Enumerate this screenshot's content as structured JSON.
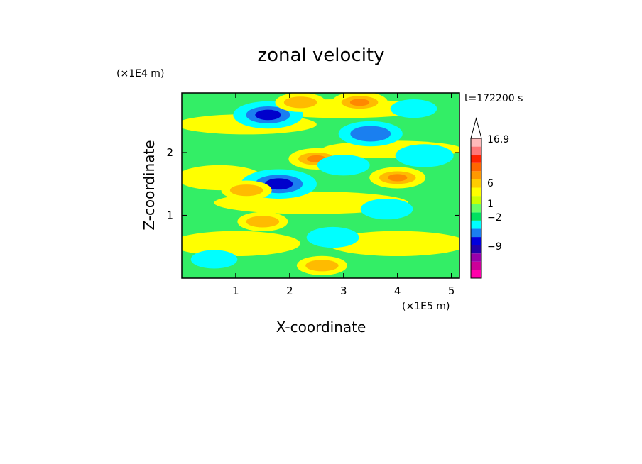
{
  "chart_data": {
    "type": "heatmap",
    "title": "zonal velocity",
    "xlabel": "X-coordinate",
    "ylabel": "Z-coordinate",
    "x_unit": "(×1E5 m)",
    "y_unit": "(×1E4 m)",
    "time_label": "t=172200 s",
    "xlim": [
      0,
      5.15
    ],
    "ylim": [
      0,
      2.95
    ],
    "x_ticks": [
      1,
      2,
      3,
      4,
      5
    ],
    "x_tick_labels": [
      "1",
      "2",
      "3",
      "4",
      "5"
    ],
    "y_ticks": [
      1,
      2
    ],
    "y_tick_labels": [
      "1",
      "2"
    ],
    "colorbar": {
      "tick_labels": [
        "16.9",
        "6",
        "1",
        "−2",
        "−9"
      ],
      "colors": [
        "#ff00aa",
        "#cc0099",
        "#9900aa",
        "#2200aa",
        "#0000dd",
        "#1a7ff0",
        "#00ffff",
        "#00e060",
        "#66ff66",
        "#ccff00",
        "#ffff00",
        "#ffcc00",
        "#ff9900",
        "#ff6600",
        "#ff2200",
        "#ff7777",
        "#ffbbbb"
      ],
      "extend": "max"
    },
    "pattern_features": [
      {
        "x": 1.6,
        "z": 2.6,
        "value": -5
      },
      {
        "x": 1.8,
        "z": 1.5,
        "value": -6
      },
      {
        "x": 3.5,
        "z": 2.3,
        "value": -4
      },
      {
        "x": 2.5,
        "z": 1.9,
        "value": 3
      },
      {
        "x": 3.0,
        "z": 1.8,
        "value": -2
      },
      {
        "x": 4.0,
        "z": 1.6,
        "value": 3
      },
      {
        "x": 1.2,
        "z": 1.4,
        "value": 2
      },
      {
        "x": 3.8,
        "z": 1.1,
        "value": -2
      },
      {
        "x": 2.8,
        "z": 0.65,
        "value": -2
      },
      {
        "x": 4.3,
        "z": 2.7,
        "value": -1
      },
      {
        "x": 0.6,
        "z": 0.3,
        "value": -1
      },
      {
        "x": 1.5,
        "z": 0.9,
        "value": 2
      },
      {
        "x": 4.5,
        "z": 1.95,
        "value": -3
      },
      {
        "x": 2.2,
        "z": 2.8,
        "value": 2
      },
      {
        "x": 3.3,
        "z": 2.8,
        "value": 3
      },
      {
        "x": 2.6,
        "z": 0.2,
        "value": 2
      }
    ]
  }
}
